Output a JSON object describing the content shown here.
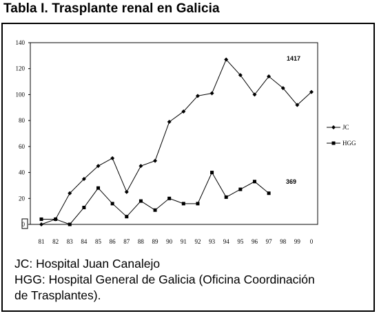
{
  "title": "Tabla I.  Trasplante renal en Galicia",
  "chart_data": {
    "type": "line",
    "categories": [
      "81",
      "82",
      "83",
      "84",
      "85",
      "86",
      "87",
      "88",
      "89",
      "90",
      "91",
      "92",
      "93",
      "94",
      "95",
      "96",
      "97",
      "98",
      "99",
      "0"
    ],
    "ylim": [
      0,
      140
    ],
    "yticks": [
      "0",
      "20",
      "40",
      "60",
      "80",
      "100",
      "120",
      "140"
    ],
    "series": [
      {
        "name": "JC",
        "marker": "diamond",
        "values": [
          0,
          4,
          24,
          35,
          45,
          51,
          25,
          45,
          49,
          79,
          87,
          99,
          101,
          127,
          115,
          100,
          114,
          105,
          92,
          102
        ]
      },
      {
        "name": "HGG",
        "marker": "square",
        "values": [
          4,
          4,
          0,
          13,
          28,
          16,
          6,
          18,
          11,
          20,
          16,
          16,
          40,
          21,
          27,
          33,
          24,
          null,
          null,
          null
        ]
      }
    ],
    "annotations": [
      {
        "text": "1417",
        "series": "JC"
      },
      {
        "text": "369",
        "series": "HGG"
      }
    ]
  },
  "caption": [
    "JC: Hospital Juan Canalejo",
    "HGG: Hospital General de Galicia (Oficina Coordinación",
    "de Trasplantes)."
  ]
}
